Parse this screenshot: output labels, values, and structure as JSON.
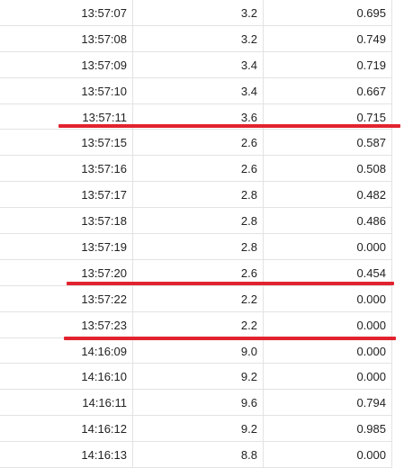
{
  "rows": [
    {
      "time": "13:57:07",
      "value": "3.2",
      "ratio": "0.695"
    },
    {
      "time": "13:57:08",
      "value": "3.2",
      "ratio": "0.749"
    },
    {
      "time": "13:57:09",
      "value": "3.4",
      "ratio": "0.719"
    },
    {
      "time": "13:57:10",
      "value": "3.4",
      "ratio": "0.667"
    },
    {
      "time": "13:57:11",
      "value": "3.6",
      "ratio": "0.715"
    },
    {
      "time": "13:57:15",
      "value": "2.6",
      "ratio": "0.587"
    },
    {
      "time": "13:57:16",
      "value": "2.6",
      "ratio": "0.508"
    },
    {
      "time": "13:57:17",
      "value": "2.8",
      "ratio": "0.482"
    },
    {
      "time": "13:57:18",
      "value": "2.8",
      "ratio": "0.486"
    },
    {
      "time": "13:57:19",
      "value": "2.8",
      "ratio": "0.000"
    },
    {
      "time": "13:57:20",
      "value": "2.6",
      "ratio": "0.454"
    },
    {
      "time": "13:57:22",
      "value": "2.2",
      "ratio": "0.000"
    },
    {
      "time": "13:57:23",
      "value": "2.2",
      "ratio": "0.000"
    },
    {
      "time": "14:16:09",
      "value": "9.0",
      "ratio": "0.000"
    },
    {
      "time": "14:16:10",
      "value": "9.2",
      "ratio": "0.000"
    },
    {
      "time": "14:16:11",
      "value": "9.6",
      "ratio": "0.794"
    },
    {
      "time": "14:16:12",
      "value": "9.2",
      "ratio": "0.985"
    },
    {
      "time": "14:16:13",
      "value": "8.8",
      "ratio": "0.000"
    }
  ],
  "annotation_color": "#e2232f"
}
